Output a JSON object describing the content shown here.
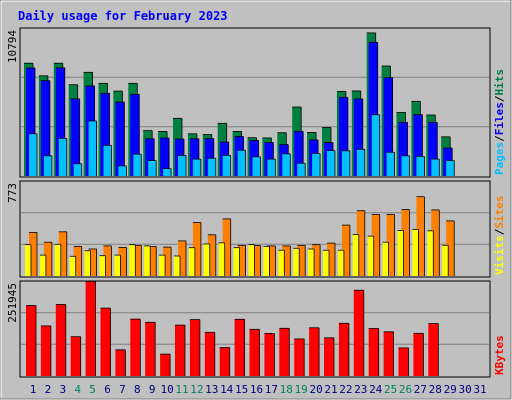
{
  "chart_data": {
    "title": "Daily usage for February 2023",
    "type": "bar",
    "x_labels": [
      "1",
      "2",
      "3",
      "4",
      "5",
      "6",
      "7",
      "8",
      "9",
      "10",
      "11",
      "12",
      "13",
      "14",
      "15",
      "16",
      "17",
      "18",
      "19",
      "20",
      "21",
      "22",
      "23",
      "24",
      "25",
      "26",
      "27",
      "28",
      "29",
      "30",
      "31"
    ],
    "weekend_days": [
      4,
      5,
      11,
      12,
      18,
      19,
      25,
      26
    ],
    "colors": {
      "hits": "#008040",
      "files": "#0000ff",
      "pages": "#00c0ff",
      "visits": "#ffff00",
      "sites": "#ff8000",
      "kbytes": "#ff0000",
      "weekend": "#00805c",
      "weekday": "#000080",
      "title": "#0000ff",
      "background": "#c0c0c0"
    },
    "panels": [
      {
        "id": "top",
        "max_label": "10794",
        "ymax": 10794,
        "legend": [
          "Hits",
          "Files",
          "Pages"
        ],
        "series": [
          {
            "name": "Hits",
            "values": [
              8230,
              7310,
              8230,
              6660,
              7560,
              6760,
              6190,
              6760,
              3310,
              3250,
              4210,
              3080,
              3030,
              3840,
              3250,
              2790,
              2780,
              3160,
              5030,
              3180,
              3540,
              6170,
              6210,
              10440,
              8020,
              4640,
              5450,
              4450,
              2860,
              0,
              0
            ]
          },
          {
            "name": "Files",
            "values": [
              7880,
              6960,
              7890,
              5630,
              6570,
              6030,
              5400,
              5960,
              2720,
              2770,
              2700,
              2710,
              2730,
              2480,
              2880,
              2600,
              2440,
              2290,
              3260,
              2630,
              2440,
              5740,
              5620,
              9750,
              7180,
              3920,
              4480,
              3920,
              2040,
              0,
              0
            ]
          },
          {
            "name": "Pages",
            "values": [
              3080,
              1470,
              2740,
              900,
              4010,
              2230,
              740,
              1590,
              1120,
              540,
              1500,
              1230,
              1290,
              1500,
              1880,
              1400,
              1230,
              1620,
              930,
              1640,
              1850,
              1840,
              1950,
              4460,
              1730,
              1470,
              1430,
              1230,
              1130,
              0,
              0
            ]
          }
        ]
      },
      {
        "id": "middle",
        "max_label": "773",
        "ymax": 773,
        "legend": [
          "Sites",
          "Visits"
        ],
        "series": [
          {
            "name": "Sites",
            "values": [
              355,
              275,
              360,
              240,
              220,
              245,
              233,
              250,
              241,
              235,
              286,
              435,
              335,
              465,
              250,
              247,
              245,
              245,
              249,
              255,
              268,
              414,
              531,
              500,
              500,
              541,
              645,
              538,
              448,
              0,
              0
            ]
          },
          {
            "name": "Visits",
            "values": [
              255,
              170,
              258,
              160,
              205,
              165,
              170,
              255,
              245,
              170,
              163,
              230,
              260,
              270,
              230,
              255,
              241,
              210,
              225,
              220,
              210,
              210,
              338,
              325,
              275,
              370,
              379,
              368,
              250,
              0,
              0
            ]
          }
        ]
      },
      {
        "id": "bottom",
        "max_label": "251945",
        "ymax": 251945,
        "legend": [
          "KBytes"
        ],
        "series": [
          {
            "name": "KBytes",
            "values": [
              186880,
              132850,
              189580,
              104240,
              251000,
              180050,
              69400,
              151000,
              142500,
              58200,
              135000,
              149500,
              115900,
              75700,
              150500,
              123900,
              112900,
              126450,
              98490,
              127850,
              101330,
              139860,
              227450,
              125980,
              117180,
              74480,
              113200,
              138840,
              0,
              0,
              0
            ]
          }
        ]
      }
    ]
  }
}
